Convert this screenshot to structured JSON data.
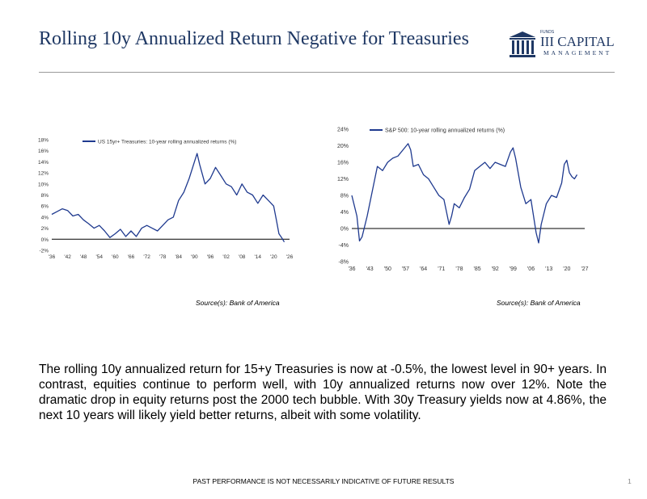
{
  "slide": {
    "title": "Rolling 10y Annualized Return Negative for Treasuries",
    "body": "The rolling 10y annualized return for 15+y Treasuries is now at -0.5%, the lowest level in 90+ years. In contrast, equities continue to perform well, with 10y annualized returns now over 12%. Note the dramatic drop in equity returns post the 2000 tech bubble. With 30y Treasury yields now at 4.86%, the next 10 years will likely yield better returns, albeit with some volatility.",
    "disclaimer": "PAST PERFORMANCE IS NOT NECESSARILY INDICATIVE OF FUTURE RESULTS",
    "page_number": "1",
    "sources": [
      "Source(s): Bank of America",
      "Source(s): Bank of America"
    ]
  },
  "logo": {
    "small_text": "FUNDS",
    "name": "III CAPITAL",
    "subtitle": "MANAGEMENT",
    "color": "#1f3864"
  },
  "colors": {
    "title": "#1f3864",
    "series": "#1f3a8f",
    "zero_line": "#000000"
  },
  "chart_data": [
    {
      "type": "line",
      "series": [
        {
          "name": "US 15yr+ Treasuries: 10-year rolling annualized returns (%)",
          "x": [
            1936,
            1938,
            1940,
            1942,
            1944,
            1946,
            1948,
            1950,
            1952,
            1954,
            1956,
            1958,
            1960,
            1962,
            1964,
            1966,
            1968,
            1970,
            1972,
            1974,
            1976,
            1978,
            1980,
            1982,
            1984,
            1986,
            1988,
            1990,
            1991,
            1992,
            1994,
            1996,
            1998,
            2000,
            2002,
            2004,
            2006,
            2008,
            2010,
            2012,
            2014,
            2016,
            2018,
            2020,
            2021,
            2022,
            2023,
            2024
          ],
          "values": [
            4.5,
            5.0,
            5.5,
            5.2,
            4.2,
            4.5,
            3.5,
            2.8,
            2.0,
            2.5,
            1.5,
            0.3,
            1.0,
            1.8,
            0.5,
            1.5,
            0.5,
            2.0,
            2.5,
            2.0,
            1.5,
            2.5,
            3.5,
            4.0,
            7.0,
            8.5,
            11.0,
            14.0,
            15.5,
            13.5,
            10.0,
            11.0,
            13.0,
            11.5,
            10.0,
            9.5,
            8.0,
            10.0,
            8.5,
            8.0,
            6.5,
            8.0,
            7.0,
            6.0,
            3.5,
            1.0,
            0.3,
            -0.5
          ]
        }
      ],
      "x_ticks": [
        "'36",
        "'42",
        "'48",
        "'54",
        "'60",
        "'66",
        "'72",
        "'78",
        "'84",
        "'90",
        "'96",
        "'02",
        "'08",
        "'14",
        "'20",
        "'26"
      ],
      "y_ticks": [
        "-2%",
        "0%",
        "2%",
        "4%",
        "6%",
        "8%",
        "10%",
        "12%",
        "14%",
        "16%",
        "18%"
      ],
      "xlim": [
        1936,
        2026
      ],
      "ylim": [
        -2,
        18
      ],
      "legend": "top-left",
      "grid": false
    },
    {
      "type": "line",
      "series": [
        {
          "name": "S&P 500: 10-year rolling annualized returns (%)",
          "x": [
            1936,
            1938,
            1939,
            1940,
            1942,
            1944,
            1946,
            1948,
            1950,
            1952,
            1954,
            1956,
            1958,
            1959,
            1960,
            1962,
            1964,
            1966,
            1968,
            1970,
            1972,
            1974,
            1975,
            1976,
            1978,
            1980,
            1982,
            1984,
            1986,
            1988,
            1990,
            1992,
            1994,
            1996,
            1998,
            1999,
            2000,
            2002,
            2004,
            2006,
            2008,
            2009,
            2010,
            2012,
            2014,
            2016,
            2018,
            2019,
            2020,
            2021,
            2022,
            2023,
            2024
          ],
          "values": [
            8.0,
            3.0,
            -3.0,
            -2.0,
            3.0,
            9.0,
            15.0,
            14.0,
            16.0,
            17.0,
            17.5,
            19.0,
            20.5,
            19.0,
            15.0,
            15.5,
            13.0,
            12.0,
            10.0,
            8.0,
            7.0,
            1.0,
            3.0,
            6.0,
            5.0,
            7.5,
            9.5,
            14.0,
            15.0,
            16.0,
            14.5,
            16.0,
            15.5,
            15.0,
            18.5,
            19.5,
            17.0,
            10.0,
            6.0,
            7.0,
            -1.0,
            -3.5,
            1.0,
            6.0,
            8.0,
            7.5,
            11.0,
            15.5,
            16.5,
            13.5,
            12.5,
            12.0,
            13.0
          ]
        }
      ],
      "x_ticks": [
        "'36",
        "'43",
        "'50",
        "'57",
        "'64",
        "'71",
        "'78",
        "'85",
        "'92",
        "'99",
        "'06",
        "'13",
        "'20",
        "'27"
      ],
      "y_ticks": [
        "-8%",
        "-4%",
        "0%",
        "4%",
        "8%",
        "12%",
        "16%",
        "20%",
        "24%"
      ],
      "xlim": [
        1936,
        2027
      ],
      "ylim": [
        -8,
        24
      ],
      "legend": "top-left",
      "grid": false
    }
  ]
}
